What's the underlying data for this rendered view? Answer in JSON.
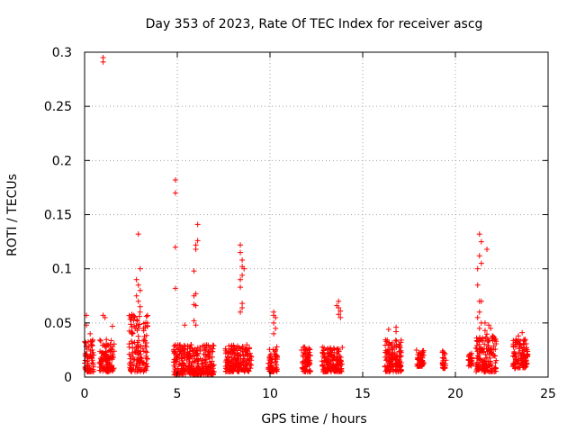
{
  "chart_data": {
    "type": "scatter",
    "title": "Day 353 of 2023, Rate Of TEC Index for receiver ascg",
    "xlabel": "GPS time / hours",
    "ylabel": "ROTI / TECUs",
    "xlim": [
      0,
      25
    ],
    "ylim": [
      0,
      0.3
    ],
    "x_ticks": [
      "0",
      "5",
      "10",
      "15",
      "20",
      "25"
    ],
    "y_ticks": [
      "0",
      "0.05",
      "0.1",
      "0.15",
      "0.2",
      "0.25",
      "0.3"
    ],
    "grid": true,
    "legend": "none",
    "marker": "plus",
    "color": "#ff0000",
    "clusters": [
      {
        "x_start": 0.0,
        "x_end": 0.5,
        "y_min": 0.005,
        "y_max": 0.035
      },
      {
        "x_start": 0.8,
        "x_end": 1.6,
        "y_min": 0.005,
        "y_max": 0.035
      },
      {
        "x_start": 2.4,
        "x_end": 3.4,
        "y_min": 0.005,
        "y_max": 0.06
      },
      {
        "x_start": 4.8,
        "x_end": 7.0,
        "y_min": 0.002,
        "y_max": 0.03
      },
      {
        "x_start": 7.6,
        "x_end": 9.0,
        "y_min": 0.005,
        "y_max": 0.03
      },
      {
        "x_start": 9.9,
        "x_end": 10.4,
        "y_min": 0.005,
        "y_max": 0.028
      },
      {
        "x_start": 11.7,
        "x_end": 12.2,
        "y_min": 0.005,
        "y_max": 0.028
      },
      {
        "x_start": 12.8,
        "x_end": 13.9,
        "y_min": 0.005,
        "y_max": 0.028
      },
      {
        "x_start": 16.2,
        "x_end": 17.1,
        "y_min": 0.005,
        "y_max": 0.035
      },
      {
        "x_start": 17.9,
        "x_end": 18.3,
        "y_min": 0.01,
        "y_max": 0.025
      },
      {
        "x_start": 19.3,
        "x_end": 19.5,
        "y_min": 0.008,
        "y_max": 0.025
      },
      {
        "x_start": 20.7,
        "x_end": 20.9,
        "y_min": 0.01,
        "y_max": 0.022
      },
      {
        "x_start": 21.1,
        "x_end": 22.2,
        "y_min": 0.005,
        "y_max": 0.04
      },
      {
        "x_start": 23.1,
        "x_end": 23.9,
        "y_min": 0.008,
        "y_max": 0.035
      }
    ],
    "points": [
      {
        "x": 0.1,
        "y": 0.057
      },
      {
        "x": 0.1,
        "y": 0.048
      },
      {
        "x": 0.3,
        "y": 0.04
      },
      {
        "x": 1.0,
        "y": 0.295
      },
      {
        "x": 1.0,
        "y": 0.291
      },
      {
        "x": 1.0,
        "y": 0.057
      },
      {
        "x": 1.1,
        "y": 0.055
      },
      {
        "x": 1.5,
        "y": 0.047
      },
      {
        "x": 2.9,
        "y": 0.132
      },
      {
        "x": 3.0,
        "y": 0.1
      },
      {
        "x": 2.8,
        "y": 0.09
      },
      {
        "x": 2.9,
        "y": 0.085
      },
      {
        "x": 3.0,
        "y": 0.08
      },
      {
        "x": 2.8,
        "y": 0.075
      },
      {
        "x": 2.9,
        "y": 0.07
      },
      {
        "x": 3.0,
        "y": 0.065
      },
      {
        "x": 4.9,
        "y": 0.182
      },
      {
        "x": 4.9,
        "y": 0.17
      },
      {
        "x": 4.9,
        "y": 0.12
      },
      {
        "x": 4.9,
        "y": 0.082
      },
      {
        "x": 5.9,
        "y": 0.075
      },
      {
        "x": 6.1,
        "y": 0.141
      },
      {
        "x": 6.1,
        "y": 0.126
      },
      {
        "x": 6.0,
        "y": 0.122
      },
      {
        "x": 6.0,
        "y": 0.118
      },
      {
        "x": 5.9,
        "y": 0.098
      },
      {
        "x": 6.0,
        "y": 0.077
      },
      {
        "x": 5.9,
        "y": 0.067
      },
      {
        "x": 6.0,
        "y": 0.066
      },
      {
        "x": 5.9,
        "y": 0.052
      },
      {
        "x": 6.0,
        "y": 0.048
      },
      {
        "x": 5.4,
        "y": 0.048
      },
      {
        "x": 8.4,
        "y": 0.122
      },
      {
        "x": 8.4,
        "y": 0.115
      },
      {
        "x": 8.5,
        "y": 0.108
      },
      {
        "x": 8.5,
        "y": 0.102
      },
      {
        "x": 8.6,
        "y": 0.1
      },
      {
        "x": 8.5,
        "y": 0.094
      },
      {
        "x": 8.4,
        "y": 0.09
      },
      {
        "x": 8.4,
        "y": 0.083
      },
      {
        "x": 8.5,
        "y": 0.068
      },
      {
        "x": 8.5,
        "y": 0.064
      },
      {
        "x": 8.4,
        "y": 0.06
      },
      {
        "x": 10.2,
        "y": 0.06
      },
      {
        "x": 10.2,
        "y": 0.057
      },
      {
        "x": 10.3,
        "y": 0.055
      },
      {
        "x": 10.2,
        "y": 0.05
      },
      {
        "x": 10.3,
        "y": 0.045
      },
      {
        "x": 10.2,
        "y": 0.04
      },
      {
        "x": 13.7,
        "y": 0.07
      },
      {
        "x": 13.6,
        "y": 0.066
      },
      {
        "x": 13.7,
        "y": 0.064
      },
      {
        "x": 13.8,
        "y": 0.061
      },
      {
        "x": 13.7,
        "y": 0.058
      },
      {
        "x": 13.8,
        "y": 0.055
      },
      {
        "x": 16.4,
        "y": 0.044
      },
      {
        "x": 16.8,
        "y": 0.046
      },
      {
        "x": 16.8,
        "y": 0.042
      },
      {
        "x": 21.3,
        "y": 0.132
      },
      {
        "x": 21.4,
        "y": 0.125
      },
      {
        "x": 21.7,
        "y": 0.118
      },
      {
        "x": 21.3,
        "y": 0.112
      },
      {
        "x": 21.4,
        "y": 0.105
      },
      {
        "x": 21.2,
        "y": 0.1
      },
      {
        "x": 21.2,
        "y": 0.085
      },
      {
        "x": 21.3,
        "y": 0.07
      },
      {
        "x": 21.4,
        "y": 0.07
      },
      {
        "x": 21.3,
        "y": 0.06
      },
      {
        "x": 21.2,
        "y": 0.055
      },
      {
        "x": 21.4,
        "y": 0.05
      },
      {
        "x": 21.3,
        "y": 0.045
      },
      {
        "x": 21.6,
        "y": 0.05
      },
      {
        "x": 21.8,
        "y": 0.048
      },
      {
        "x": 21.9,
        "y": 0.045
      },
      {
        "x": 21.6,
        "y": 0.043
      },
      {
        "x": 23.6,
        "y": 0.041
      },
      {
        "x": 23.4,
        "y": 0.038
      }
    ]
  }
}
